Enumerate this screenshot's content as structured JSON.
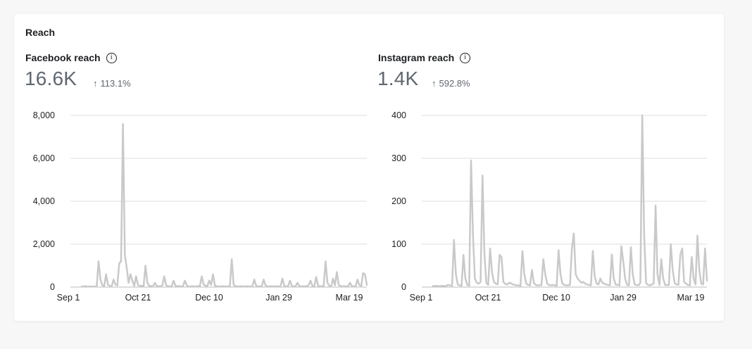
{
  "section_title": "Reach",
  "icons": {
    "info": "info-icon",
    "trend": "arrow-up-icon"
  },
  "colors": {
    "line": "#c9c9c9",
    "grid": "#dddddd",
    "axis": "#bdbdbd"
  },
  "panels": [
    {
      "metric": "Facebook reach",
      "value": "16.6K",
      "change": "113.1%",
      "chart_data": {
        "type": "line",
        "xlabel": "",
        "ylabel": "",
        "x_ticks": [
          "Sep 1",
          "Oct 21",
          "Dec 10",
          "Jan 29",
          "Mar 19"
        ],
        "y_ticks": [
          "0",
          "2,000",
          "4,000",
          "6,000",
          "8,000"
        ],
        "ylim": [
          0,
          8000
        ],
        "grid": true,
        "series": [
          {
            "values": [
              30,
              20,
              40,
              20,
              30,
              25,
              20,
              30,
              20,
              1200,
              350,
              90,
              40,
              600,
              120,
              50,
              30,
              350,
              120,
              80,
              1100,
              1200,
              7600,
              1500,
              900,
              200,
              600,
              300,
              60,
              500,
              100,
              50,
              60,
              40,
              1000,
              200,
              60,
              50,
              30,
              200,
              50,
              40,
              30,
              80,
              500,
              90,
              40,
              30,
              40,
              300,
              60,
              40,
              50,
              30,
              40,
              300,
              80,
              30,
              30,
              40,
              30,
              30,
              50,
              40,
              500,
              120,
              60,
              50,
              300,
              100,
              600,
              70,
              40,
              30,
              30,
              40,
              30,
              30,
              30,
              50,
              1300,
              100,
              40,
              30,
              30,
              40,
              30,
              30,
              40,
              30,
              30,
              40,
              350,
              60,
              30,
              30,
              40,
              350,
              80,
              30,
              30,
              40,
              30,
              30,
              40,
              30,
              40,
              400,
              60,
              30,
              40,
              300,
              60,
              30,
              40,
              200,
              50,
              30,
              40,
              30,
              40,
              100,
              300,
              50,
              40,
              470,
              60,
              40,
              30,
              50,
              1200,
              200,
              60,
              30,
              400,
              80,
              700,
              100,
              50,
              30,
              40,
              30,
              40,
              200,
              50,
              30,
              40,
              350,
              100,
              40,
              650,
              600,
              100
            ]
          }
        ]
      }
    },
    {
      "metric": "Instagram reach",
      "value": "1.4K",
      "change": "592.8%",
      "chart_data": {
        "type": "line",
        "xlabel": "",
        "ylabel": "",
        "x_ticks": [
          "Sep 1",
          "Oct 21",
          "Dec 10",
          "Jan 29",
          "Mar 19"
        ],
        "y_ticks": [
          "0",
          "100",
          "200",
          "300",
          "400"
        ],
        "ylim": [
          0,
          400
        ],
        "grid": true,
        "series": [
          {
            "values": [
              3,
              2,
              3,
              2,
              2,
              3,
              2,
              3,
              5,
              4,
              3,
              110,
              30,
              6,
              4,
              3,
              75,
              20,
              5,
              3,
              295,
              120,
              20,
              10,
              8,
              12,
              260,
              80,
              10,
              5,
              90,
              35,
              12,
              8,
              6,
              75,
              70,
              12,
              7,
              6,
              10,
              9,
              6,
              5,
              4,
              4,
              3,
              84,
              30,
              8,
              5,
              4,
              40,
              10,
              5,
              4,
              4,
              5,
              65,
              30,
              8,
              5,
              4,
              5,
              4,
              3,
              86,
              30,
              8,
              5,
              4,
              4,
              5,
              90,
              125,
              30,
              20,
              15,
              10,
              12,
              8,
              6,
              5,
              4,
              84,
              25,
              8,
              6,
              20,
              10,
              8,
              6,
              5,
              4,
              76,
              20,
              6,
              5,
              4,
              95,
              60,
              20,
              5,
              4,
              93,
              30,
              6,
              5,
              4,
              10,
              400,
              120,
              10,
              5,
              4,
              6,
              8,
              190,
              30,
              5,
              65,
              20,
              5,
              5,
              5,
              100,
              40,
              10,
              6,
              5,
              75,
              90,
              12,
              8,
              5,
              4,
              70,
              20,
              6,
              120,
              40,
              8,
              6,
              90,
              15
            ]
          }
        ]
      }
    }
  ]
}
